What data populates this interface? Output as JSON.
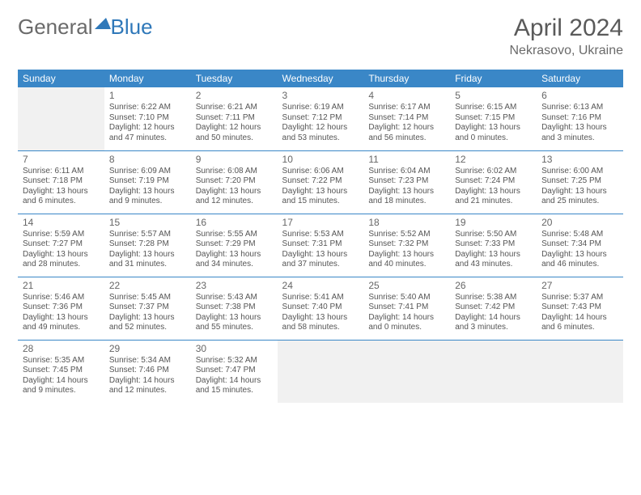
{
  "brand": {
    "part1": "General",
    "part2": "Blue"
  },
  "title": "April 2024",
  "location": "Nekrasovo, Ukraine",
  "headers": [
    "Sunday",
    "Monday",
    "Tuesday",
    "Wednesday",
    "Thursday",
    "Friday",
    "Saturday"
  ],
  "header_bg": "#3a87c7",
  "header_fg": "#ffffff",
  "cell_border": "#3a87c7",
  "empty_bg": "#f1f1f1",
  "weeks": [
    [
      {
        "empty": true
      },
      {
        "n": "1",
        "sr": "6:22 AM",
        "ss": "7:10 PM",
        "dl": "12 hours and 47 minutes."
      },
      {
        "n": "2",
        "sr": "6:21 AM",
        "ss": "7:11 PM",
        "dl": "12 hours and 50 minutes."
      },
      {
        "n": "3",
        "sr": "6:19 AM",
        "ss": "7:12 PM",
        "dl": "12 hours and 53 minutes."
      },
      {
        "n": "4",
        "sr": "6:17 AM",
        "ss": "7:14 PM",
        "dl": "12 hours and 56 minutes."
      },
      {
        "n": "5",
        "sr": "6:15 AM",
        "ss": "7:15 PM",
        "dl": "13 hours and 0 minutes."
      },
      {
        "n": "6",
        "sr": "6:13 AM",
        "ss": "7:16 PM",
        "dl": "13 hours and 3 minutes."
      }
    ],
    [
      {
        "n": "7",
        "sr": "6:11 AM",
        "ss": "7:18 PM",
        "dl": "13 hours and 6 minutes."
      },
      {
        "n": "8",
        "sr": "6:09 AM",
        "ss": "7:19 PM",
        "dl": "13 hours and 9 minutes."
      },
      {
        "n": "9",
        "sr": "6:08 AM",
        "ss": "7:20 PM",
        "dl": "13 hours and 12 minutes."
      },
      {
        "n": "10",
        "sr": "6:06 AM",
        "ss": "7:22 PM",
        "dl": "13 hours and 15 minutes."
      },
      {
        "n": "11",
        "sr": "6:04 AM",
        "ss": "7:23 PM",
        "dl": "13 hours and 18 minutes."
      },
      {
        "n": "12",
        "sr": "6:02 AM",
        "ss": "7:24 PM",
        "dl": "13 hours and 21 minutes."
      },
      {
        "n": "13",
        "sr": "6:00 AM",
        "ss": "7:25 PM",
        "dl": "13 hours and 25 minutes."
      }
    ],
    [
      {
        "n": "14",
        "sr": "5:59 AM",
        "ss": "7:27 PM",
        "dl": "13 hours and 28 minutes."
      },
      {
        "n": "15",
        "sr": "5:57 AM",
        "ss": "7:28 PM",
        "dl": "13 hours and 31 minutes."
      },
      {
        "n": "16",
        "sr": "5:55 AM",
        "ss": "7:29 PM",
        "dl": "13 hours and 34 minutes."
      },
      {
        "n": "17",
        "sr": "5:53 AM",
        "ss": "7:31 PM",
        "dl": "13 hours and 37 minutes."
      },
      {
        "n": "18",
        "sr": "5:52 AM",
        "ss": "7:32 PM",
        "dl": "13 hours and 40 minutes."
      },
      {
        "n": "19",
        "sr": "5:50 AM",
        "ss": "7:33 PM",
        "dl": "13 hours and 43 minutes."
      },
      {
        "n": "20",
        "sr": "5:48 AM",
        "ss": "7:34 PM",
        "dl": "13 hours and 46 minutes."
      }
    ],
    [
      {
        "n": "21",
        "sr": "5:46 AM",
        "ss": "7:36 PM",
        "dl": "13 hours and 49 minutes."
      },
      {
        "n": "22",
        "sr": "5:45 AM",
        "ss": "7:37 PM",
        "dl": "13 hours and 52 minutes."
      },
      {
        "n": "23",
        "sr": "5:43 AM",
        "ss": "7:38 PM",
        "dl": "13 hours and 55 minutes."
      },
      {
        "n": "24",
        "sr": "5:41 AM",
        "ss": "7:40 PM",
        "dl": "13 hours and 58 minutes."
      },
      {
        "n": "25",
        "sr": "5:40 AM",
        "ss": "7:41 PM",
        "dl": "14 hours and 0 minutes."
      },
      {
        "n": "26",
        "sr": "5:38 AM",
        "ss": "7:42 PM",
        "dl": "14 hours and 3 minutes."
      },
      {
        "n": "27",
        "sr": "5:37 AM",
        "ss": "7:43 PM",
        "dl": "14 hours and 6 minutes."
      }
    ],
    [
      {
        "n": "28",
        "sr": "5:35 AM",
        "ss": "7:45 PM",
        "dl": "14 hours and 9 minutes."
      },
      {
        "n": "29",
        "sr": "5:34 AM",
        "ss": "7:46 PM",
        "dl": "14 hours and 12 minutes."
      },
      {
        "n": "30",
        "sr": "5:32 AM",
        "ss": "7:47 PM",
        "dl": "14 hours and 15 minutes."
      },
      {
        "empty": true
      },
      {
        "empty": true
      },
      {
        "empty": true
      },
      {
        "empty": true
      }
    ]
  ],
  "labels": {
    "sunrise": "Sunrise: ",
    "sunset": "Sunset: ",
    "daylight": "Daylight: "
  }
}
